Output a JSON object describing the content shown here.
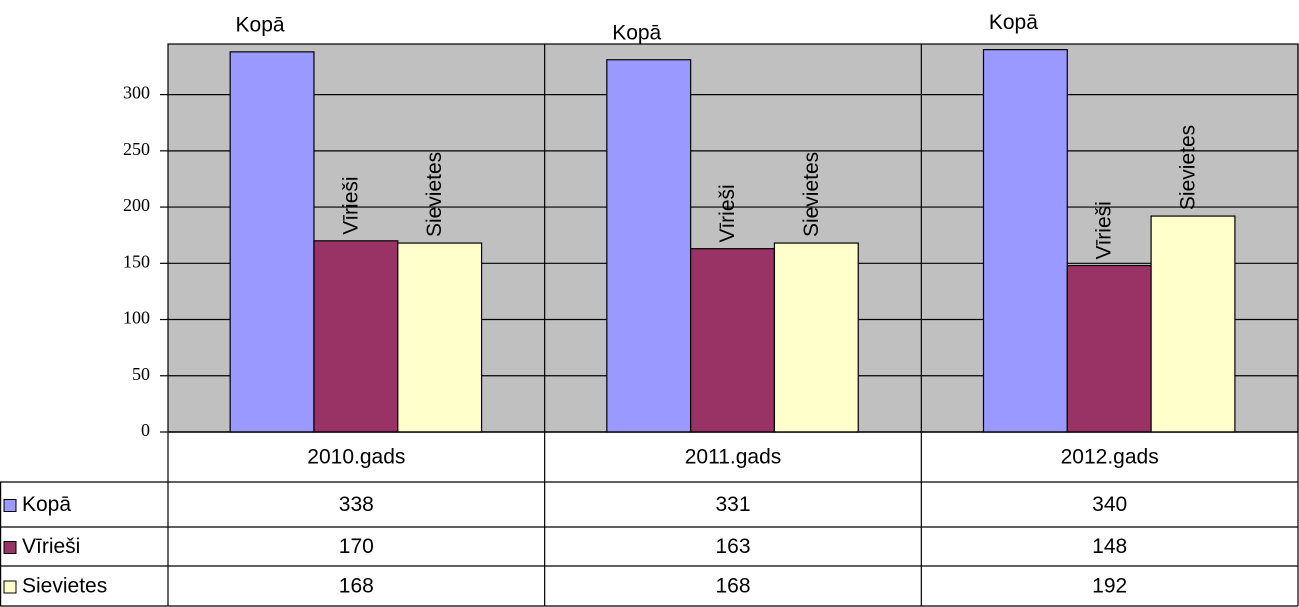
{
  "chart_data": {
    "type": "bar",
    "categories": [
      "2010.gads",
      "2011.gads",
      "2012.gads"
    ],
    "series": [
      {
        "name": "Kopā",
        "color": "#9999ff",
        "values": [
          338,
          331,
          340
        ]
      },
      {
        "name": "Vīrieši",
        "color": "#993366",
        "values": [
          170,
          163,
          148
        ]
      },
      {
        "name": "Sievietes",
        "color": "#ffffcc",
        "values": [
          168,
          168,
          192
        ]
      }
    ],
    "ylim": [
      0,
      345
    ],
    "yticks": [
      0,
      50,
      100,
      150,
      200,
      250,
      300
    ],
    "grid": true,
    "background": "#c0c0c0",
    "data_table": true
  }
}
